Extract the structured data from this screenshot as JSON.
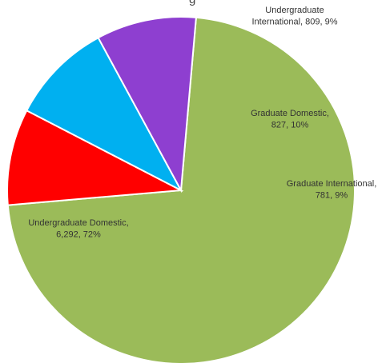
{
  "chart_data": {
    "type": "pie",
    "title_fragment": "g",
    "slices": [
      {
        "name": "Undergraduate Domestic",
        "value": 6292,
        "percent": 72,
        "color": "#9BBB59",
        "label_lines": [
          "Undergraduate Domestic,",
          "6,292, 72%"
        ]
      },
      {
        "name": "Undergraduate International",
        "value": 809,
        "percent": 9,
        "color": "#8E3FD0",
        "label_lines": [
          "Undergraduate",
          "International, 809, 9%"
        ]
      },
      {
        "name": "Graduate Domestic",
        "value": 827,
        "percent": 10,
        "color": "#00B0F0",
        "label_lines": [
          "Graduate Domestic,",
          "827, 10%"
        ]
      },
      {
        "name": "Graduate International",
        "value": 781,
        "percent": 9,
        "color": "#FF0000",
        "label_lines": [
          "Graduate International,",
          "781, 9%"
        ]
      }
    ]
  }
}
